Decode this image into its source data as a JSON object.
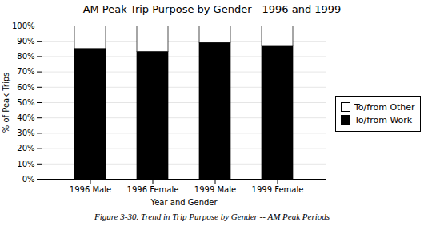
{
  "chart_data": {
    "type": "bar",
    "stacked": true,
    "title": "AM Peak Trip Purpose by Gender - 1996 and 1999",
    "caption": "Figure 3-30. Trend in Trip Purpose by Gender -- AM Peak Periods",
    "xlabel": "Year and Gender",
    "ylabel": "% of Peak Trips",
    "categories": [
      "1996 Male",
      "1996 Female",
      "1999 Male",
      "1999 Female"
    ],
    "series": [
      {
        "name": "To/from Work",
        "color": "#000000",
        "values": [
          85,
          83,
          89,
          87
        ]
      },
      {
        "name": "To/from Other",
        "color": "#ffffff",
        "values": [
          15,
          17,
          11,
          13
        ]
      }
    ],
    "ylim": [
      0,
      100
    ],
    "yticks": [
      {
        "value": 0,
        "label": "0%"
      },
      {
        "value": 10,
        "label": "10%"
      },
      {
        "value": 20,
        "label": "20%"
      },
      {
        "value": 30,
        "label": "30%"
      },
      {
        "value": 40,
        "label": "40%"
      },
      {
        "value": 50,
        "label": "50%"
      },
      {
        "value": 60,
        "label": "60%"
      },
      {
        "value": 70,
        "label": "70%"
      },
      {
        "value": 80,
        "label": "80%"
      },
      {
        "value": 90,
        "label": "90%"
      },
      {
        "value": 100,
        "label": "100%"
      }
    ],
    "grid": true,
    "legend": "right"
  }
}
